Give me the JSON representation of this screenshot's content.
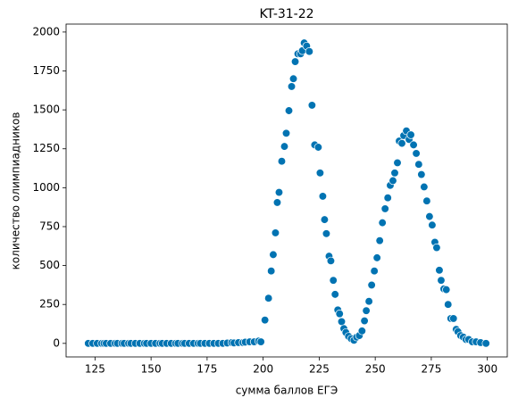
{
  "chart_data": {
    "type": "scatter",
    "title": "KT-31-22",
    "xlabel": "сумма баллов ЕГЭ",
    "ylabel": "количество олимпиадников",
    "color": "#0173b2",
    "xlim": [
      112.1,
      308.9
    ],
    "ylim": [
      -87,
      2051
    ],
    "xticks": [
      125,
      150,
      175,
      200,
      225,
      250,
      275,
      300
    ],
    "yticks": [
      0,
      250,
      500,
      750,
      1000,
      1250,
      1500,
      1750,
      2000
    ],
    "x": [
      122,
      124,
      126,
      128,
      129,
      130,
      132,
      134,
      135,
      137,
      138,
      140,
      141,
      143,
      145,
      147,
      148,
      150,
      152,
      154,
      155,
      157,
      159,
      161,
      162,
      164,
      165,
      167,
      169,
      171,
      172,
      174,
      176,
      178,
      180,
      182,
      184,
      186,
      187,
      189,
      191,
      192,
      194,
      196,
      198,
      199,
      200.8,
      202.4,
      203.6,
      204.5,
      205.5,
      206.3,
      207.1,
      208.3,
      209.5,
      210.3,
      211.5,
      212.7,
      213.5,
      214.3,
      215.5,
      216.7,
      217.5,
      218.3,
      219.4,
      220.6,
      221.8,
      223,
      224.6,
      225.4,
      226.6,
      227.4,
      228.2,
      229.4,
      230.2,
      231.3,
      232.1,
      233.3,
      234.1,
      235,
      236,
      236.9,
      238.1,
      239.3,
      240.5,
      241.7,
      242.9,
      244.1,
      245.2,
      246,
      247.2,
      248.4,
      249.6,
      250.8,
      252,
      253.2,
      254.4,
      255.6,
      256.7,
      257.9,
      258.7,
      259.9,
      260.7,
      261.9,
      262.7,
      263.9,
      265.1,
      265.9,
      267.1,
      268.3,
      269.4,
      270.6,
      271.8,
      273,
      274.2,
      275.4,
      276.6,
      277.4,
      278.6,
      279.4,
      280.6,
      281.7,
      282.5,
      283.7,
      284.9,
      286.1,
      286.9,
      288.1,
      289.3,
      290.5,
      291.7,
      293.3,
      295,
      297,
      299.4
    ],
    "values": [
      0,
      0,
      0,
      0,
      0,
      0,
      0,
      0,
      0,
      0,
      0,
      0,
      0,
      0,
      0,
      0,
      0,
      0,
      0,
      0,
      0,
      0,
      0,
      0,
      0,
      0,
      0,
      0,
      0,
      0,
      0,
      0,
      0,
      0,
      0,
      0,
      2,
      5,
      3,
      5,
      5,
      8,
      10,
      10,
      15,
      10,
      150,
      290,
      465,
      570,
      710,
      905,
      970,
      1170,
      1265,
      1350,
      1495,
      1650,
      1700,
      1810,
      1860,
      1860,
      1880,
      1930,
      1910,
      1875,
      1530,
      1275,
      1260,
      1095,
      945,
      795,
      705,
      560,
      530,
      405,
      315,
      215,
      190,
      140,
      95,
      70,
      45,
      30,
      20,
      40,
      50,
      80,
      145,
      210,
      270,
      375,
      465,
      550,
      660,
      775,
      865,
      935,
      1015,
      1045,
      1095,
      1160,
      1300,
      1285,
      1335,
      1365,
      1310,
      1340,
      1275,
      1220,
      1150,
      1085,
      1005,
      915,
      815,
      760,
      650,
      615,
      470,
      405,
      350,
      345,
      250,
      160,
      160,
      90,
      75,
      50,
      40,
      25,
      25,
      10,
      10,
      5,
      0
    ]
  }
}
